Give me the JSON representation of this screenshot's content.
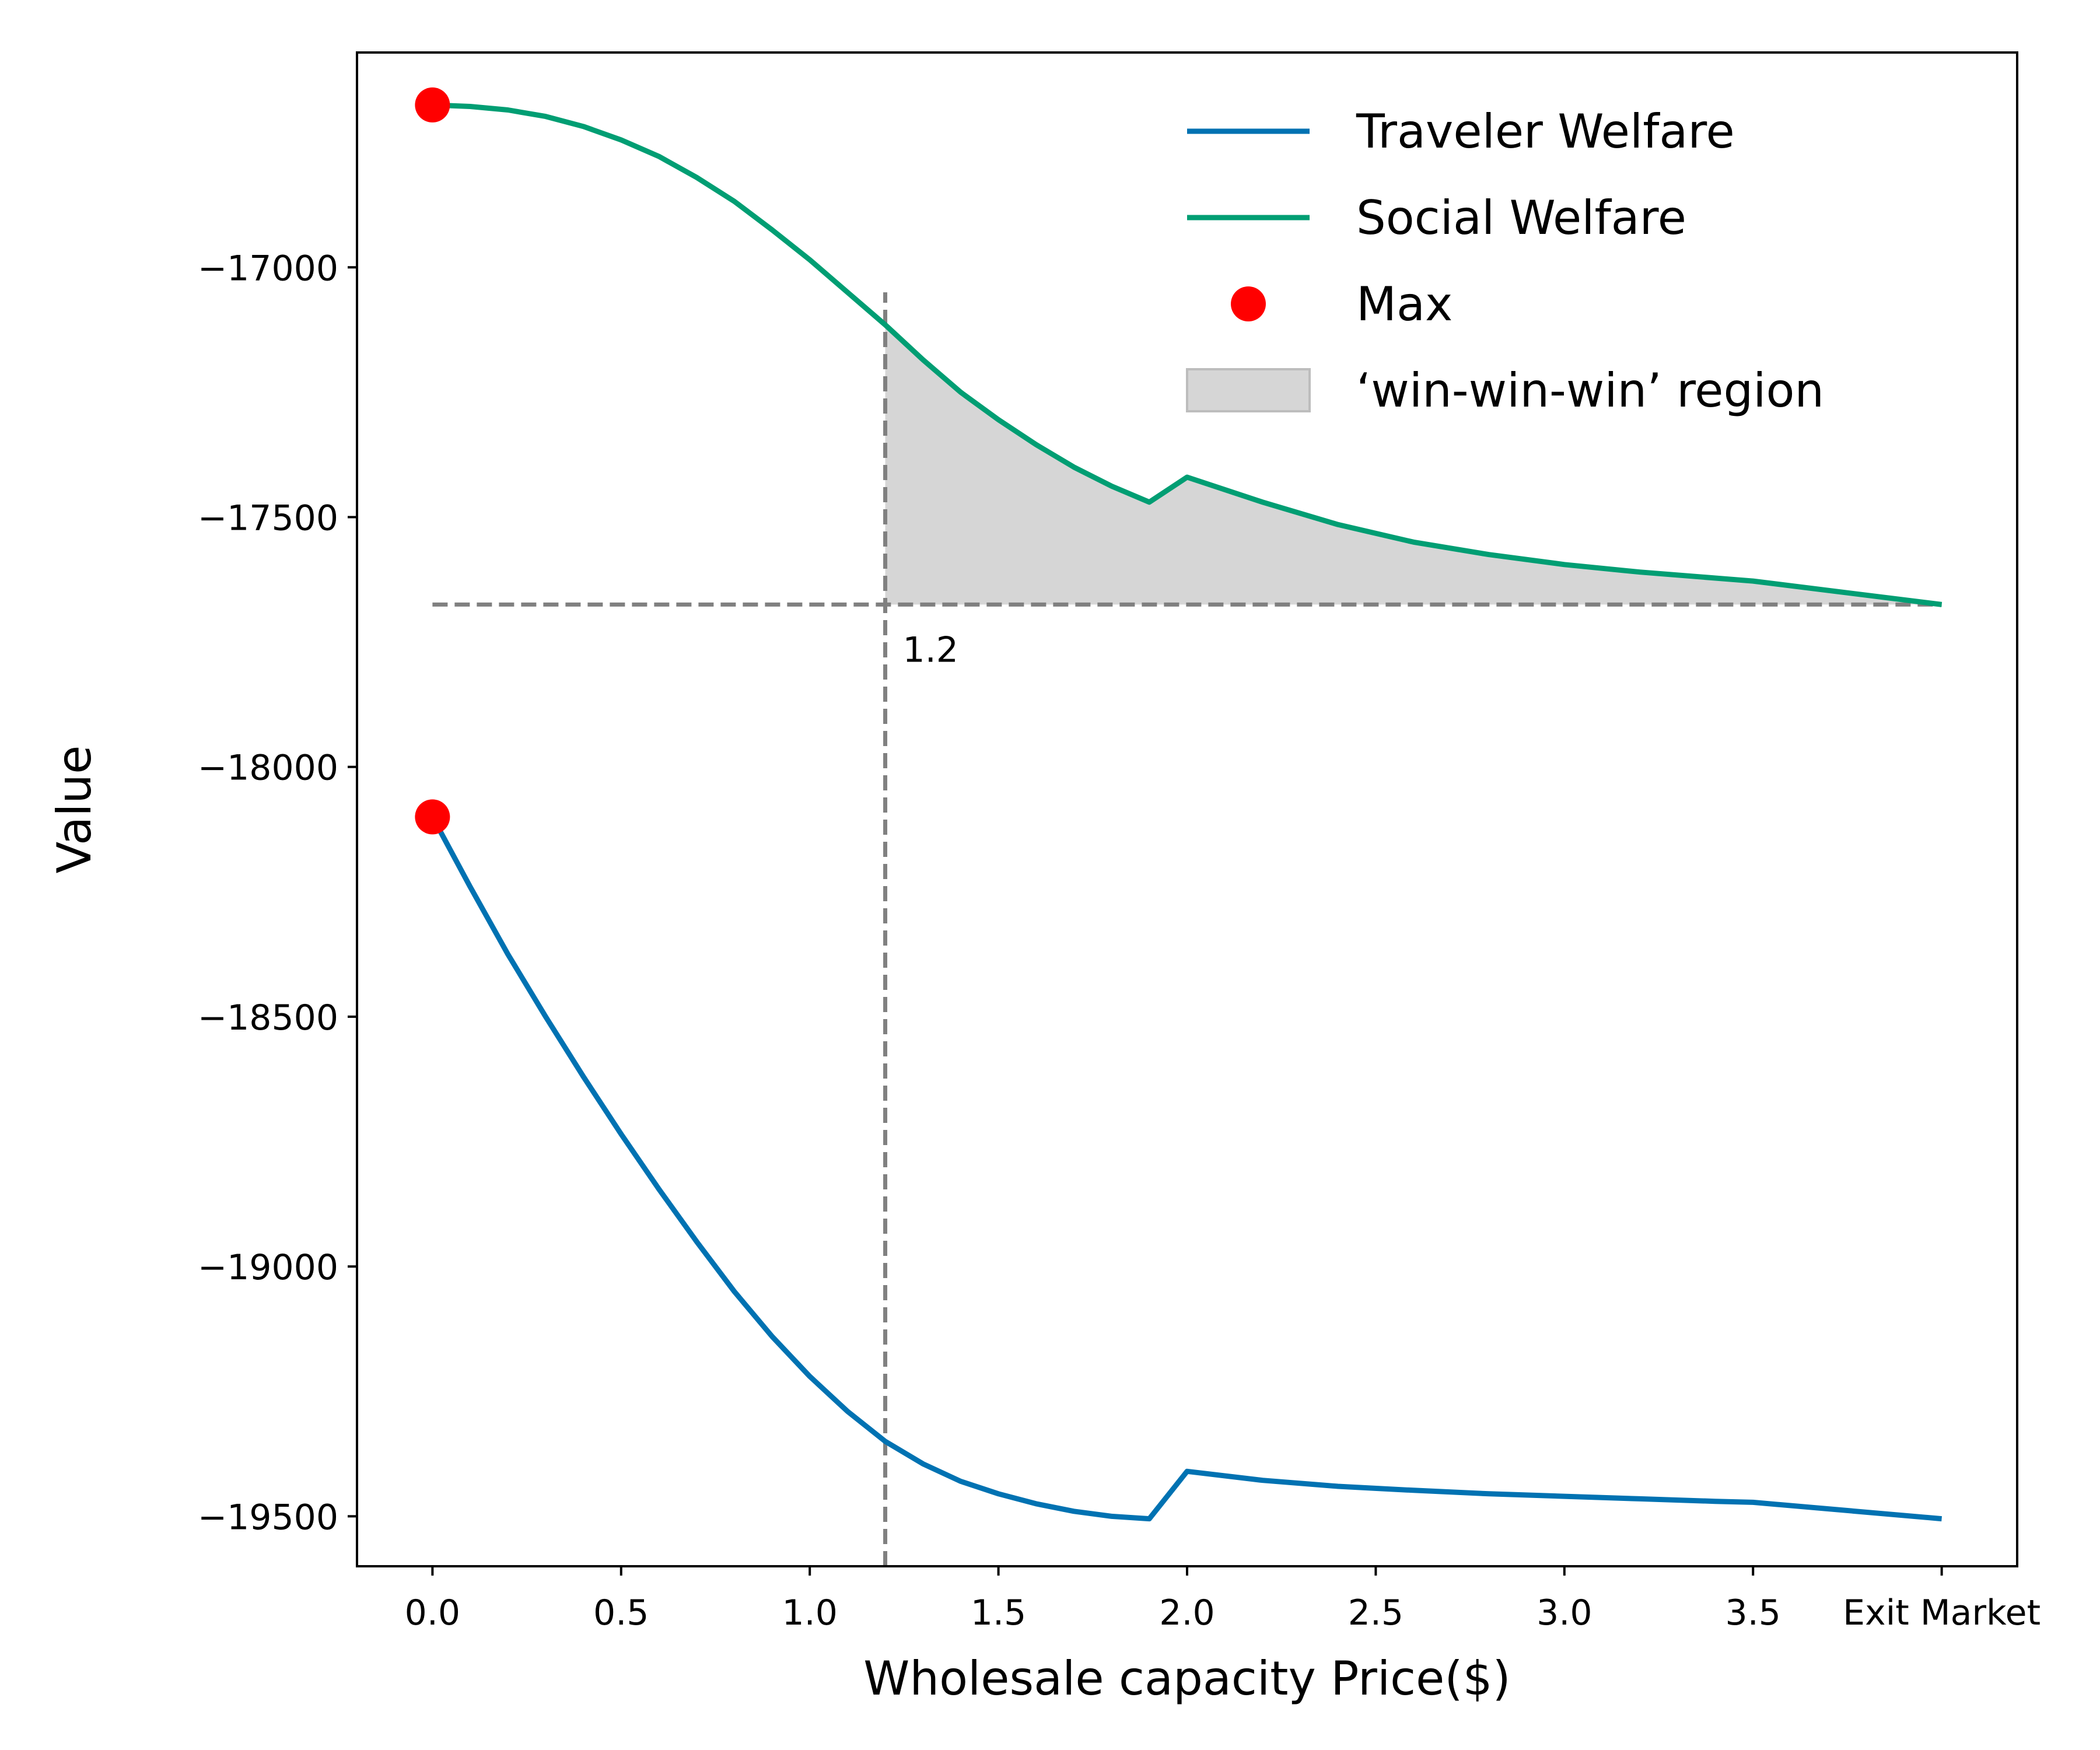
{
  "chart_data": {
    "type": "line",
    "title": "",
    "xlabel": "Wholesale capacity Price($)",
    "ylabel": "Value",
    "xlim": [
      -0.2,
      4.2
    ],
    "ylim": [
      -19600,
      -16570
    ],
    "xticks": [
      {
        "value": 0.0,
        "label": "0.0"
      },
      {
        "value": 0.5,
        "label": "0.5"
      },
      {
        "value": 1.0,
        "label": "1.0"
      },
      {
        "value": 1.5,
        "label": "1.5"
      },
      {
        "value": 2.0,
        "label": "2.0"
      },
      {
        "value": 2.5,
        "label": "2.5"
      },
      {
        "value": 3.0,
        "label": "3.0"
      },
      {
        "value": 3.5,
        "label": "3.5"
      },
      {
        "value": 4.0,
        "label": "Exit Market"
      }
    ],
    "yticks": [
      {
        "value": -17000,
        "label": "−17000"
      },
      {
        "value": -17500,
        "label": "−17500"
      },
      {
        "value": -18000,
        "label": "−18000"
      },
      {
        "value": -18500,
        "label": "−18500"
      },
      {
        "value": -19000,
        "label": "−19000"
      },
      {
        "value": -19500,
        "label": "−19500"
      }
    ],
    "x": [
      0.0,
      0.1,
      0.2,
      0.3,
      0.4,
      0.5,
      0.6,
      0.7,
      0.8,
      0.9,
      1.0,
      1.1,
      1.2,
      1.3,
      1.4,
      1.5,
      1.6,
      1.7,
      1.8,
      1.9,
      2.0,
      2.2,
      2.4,
      2.6,
      2.8,
      3.0,
      3.2,
      3.4,
      3.5,
      4.0
    ],
    "series": [
      {
        "name": "Traveler Welfare",
        "color": "#0072b2",
        "values": [
          -18100,
          -18240,
          -18375,
          -18500,
          -18620,
          -18735,
          -18845,
          -18950,
          -19050,
          -19140,
          -19220,
          -19290,
          -19350,
          -19395,
          -19430,
          -19455,
          -19475,
          -19490,
          -19500,
          -19505,
          -19410,
          -19428,
          -19440,
          -19448,
          -19455,
          -19460,
          -19465,
          -19470,
          -19472,
          -19505
        ]
      },
      {
        "name": "Social Welfare",
        "color": "#009e73",
        "values": [
          -16675,
          -16678,
          -16685,
          -16698,
          -16718,
          -16745,
          -16778,
          -16820,
          -16868,
          -16925,
          -16985,
          -17050,
          -17115,
          -17185,
          -17250,
          -17305,
          -17355,
          -17400,
          -17438,
          -17470,
          -17420,
          -17470,
          -17515,
          -17550,
          -17575,
          -17595,
          -17610,
          -17622,
          -17628,
          -17675
        ]
      }
    ],
    "max_points": [
      {
        "series": "Traveler Welfare",
        "x": 0.0,
        "y": -18100
      },
      {
        "series": "Social Welfare",
        "x": 0.0,
        "y": -16675
      }
    ],
    "shaded_region": {
      "label": "‘win-win-win’ region",
      "x_from": 1.2,
      "x_to": 4.0,
      "y_floor": -17675,
      "color": "#d6d6d6"
    },
    "reference_lines": [
      {
        "orientation": "vertical",
        "x": 1.2,
        "y_from": -19600,
        "y_to": -17050
      },
      {
        "orientation": "horizontal",
        "y": -17675,
        "x_from": 0.0,
        "x_to": 4.0
      }
    ],
    "annotations": [
      {
        "text": "1.2",
        "x": 1.2,
        "y": -17675
      }
    ],
    "legend": {
      "position": "top-right",
      "entries": [
        {
          "label": "Traveler Welfare",
          "kind": "line",
          "color": "#0072b2"
        },
        {
          "label": "Social Welfare",
          "kind": "line",
          "color": "#009e73"
        },
        {
          "label": "Max",
          "kind": "marker",
          "color": "#ff0000"
        },
        {
          "label": "‘win-win-win’ region",
          "kind": "patch",
          "color": "#d6d6d6"
        }
      ]
    }
  }
}
